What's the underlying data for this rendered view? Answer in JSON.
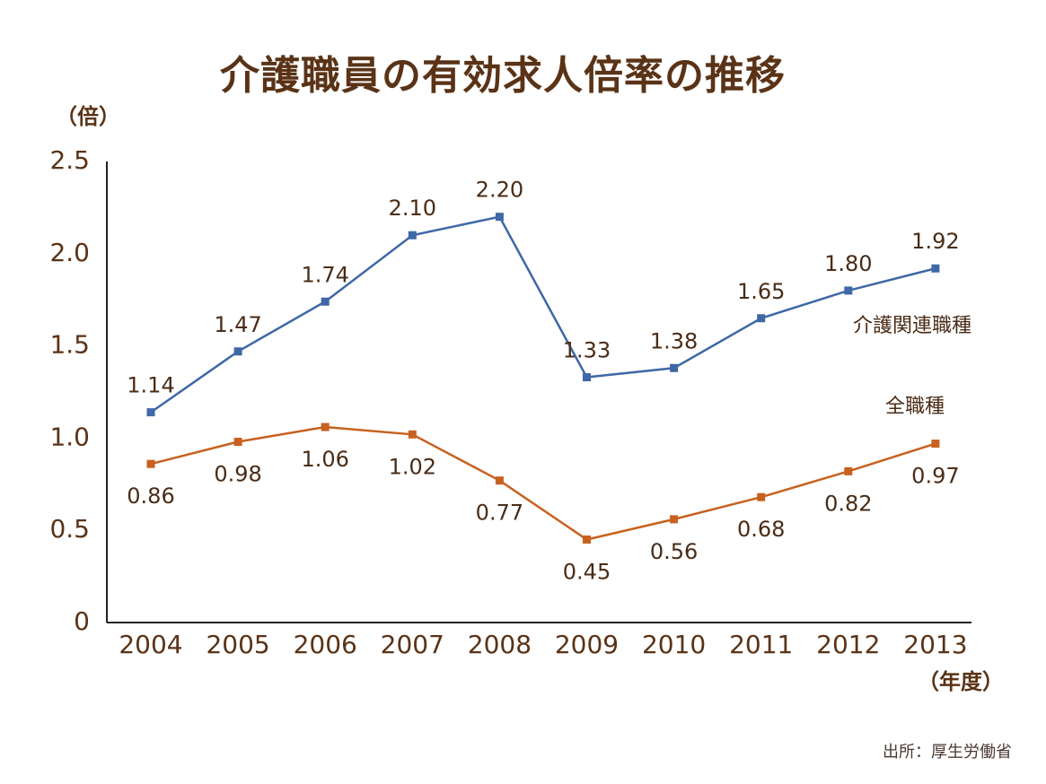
{
  "chart_data": {
    "type": "line",
    "title": "介護職員の有効求人倍率の推移",
    "ylabel": "（倍）",
    "xlabel": "（年度）",
    "categories": [
      "2004",
      "2005",
      "2006",
      "2007",
      "2008",
      "2009",
      "2010",
      "2011",
      "2012",
      "2013"
    ],
    "y_ticks": [
      "0",
      "0.5",
      "1.0",
      "1.5",
      "2.0",
      "2.5"
    ],
    "y_tick_values": [
      0,
      0.5,
      1.0,
      1.5,
      2.0,
      2.5
    ],
    "ylim": [
      0,
      2.5
    ],
    "grid": false,
    "series": [
      {
        "name": "介護関連職種",
        "color": "#3e68a6",
        "values": [
          1.14,
          1.47,
          1.74,
          2.1,
          2.2,
          1.33,
          1.38,
          1.65,
          1.8,
          1.92
        ],
        "labels": [
          "1.14",
          "1.47",
          "1.74",
          "2.10",
          "2.20",
          "1.33",
          "1.38",
          "1.65",
          "1.80",
          "1.92"
        ],
        "label_position": "above"
      },
      {
        "name": "全職種",
        "color": "#c8611f",
        "values": [
          0.86,
          0.98,
          1.06,
          1.02,
          0.77,
          0.45,
          0.56,
          0.68,
          0.82,
          0.97
        ],
        "labels": [
          "0.86",
          "0.98",
          "1.06",
          "1.02",
          "0.77",
          "0.45",
          "0.56",
          "0.68",
          "0.82",
          "0.97"
        ],
        "label_position": "below"
      }
    ]
  },
  "source": "出所：厚生労働省"
}
